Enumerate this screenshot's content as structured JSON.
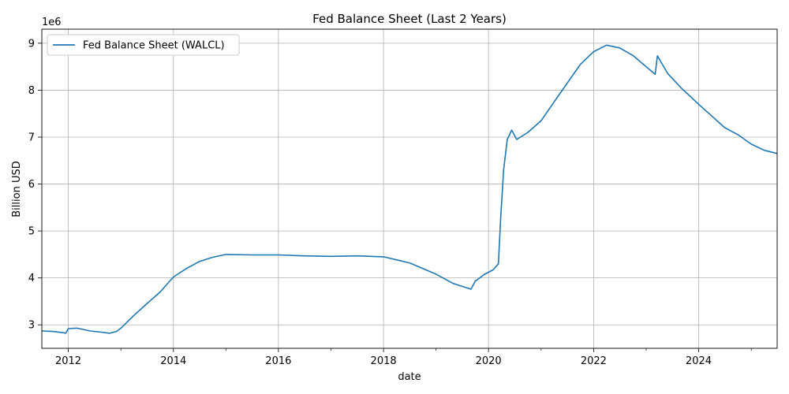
{
  "chart_data": {
    "type": "line",
    "title": "Fed Balance Sheet (Last 2 Years)",
    "xlabel": "date",
    "ylabel": "Billion USD",
    "y_offset_label": "1e6",
    "y_scale_note": "axis values shown in units of 1e6",
    "xlim": [
      "2011-07-01",
      "2025-06-30"
    ],
    "ylim": [
      2.5,
      9.3
    ],
    "x_ticks": [
      "2012",
      "2014",
      "2016",
      "2018",
      "2020",
      "2022",
      "2024"
    ],
    "y_ticks": [
      3,
      4,
      5,
      6,
      7,
      8,
      9
    ],
    "grid": true,
    "legend_position": "top-left",
    "colors": {
      "line": "#1f77b4",
      "grid": "#b0b0b0"
    },
    "series": [
      {
        "name": "Fed Balance Sheet (WALCL)",
        "points": [
          [
            "2011-07-01",
            2.87
          ],
          [
            "2011-09-15",
            2.86
          ],
          [
            "2011-12-01",
            2.83
          ],
          [
            "2011-12-15",
            2.82
          ],
          [
            "2012-01-01",
            2.92
          ],
          [
            "2012-03-01",
            2.93
          ],
          [
            "2012-06-01",
            2.87
          ],
          [
            "2012-09-01",
            2.84
          ],
          [
            "2012-10-15",
            2.82
          ],
          [
            "2012-12-01",
            2.86
          ],
          [
            "2013-01-01",
            2.93
          ],
          [
            "2013-04-01",
            3.2
          ],
          [
            "2013-07-01",
            3.45
          ],
          [
            "2013-10-01",
            3.7
          ],
          [
            "2014-01-01",
            4.02
          ],
          [
            "2014-04-01",
            4.2
          ],
          [
            "2014-07-01",
            4.35
          ],
          [
            "2014-10-01",
            4.44
          ],
          [
            "2015-01-01",
            4.5
          ],
          [
            "2015-07-01",
            4.49
          ],
          [
            "2016-01-01",
            4.49
          ],
          [
            "2016-07-01",
            4.47
          ],
          [
            "2017-01-01",
            4.46
          ],
          [
            "2017-07-01",
            4.47
          ],
          [
            "2018-01-01",
            4.45
          ],
          [
            "2018-07-01",
            4.32
          ],
          [
            "2019-01-01",
            4.08
          ],
          [
            "2019-05-01",
            3.88
          ],
          [
            "2019-09-01",
            3.76
          ],
          [
            "2019-10-01",
            3.93
          ],
          [
            "2019-12-01",
            4.07
          ],
          [
            "2020-02-01",
            4.17
          ],
          [
            "2020-03-10",
            4.3
          ],
          [
            "2020-03-25",
            5.25
          ],
          [
            "2020-04-15",
            6.3
          ],
          [
            "2020-05-10",
            6.95
          ],
          [
            "2020-06-10",
            7.15
          ],
          [
            "2020-07-15",
            6.95
          ],
          [
            "2020-10-01",
            7.1
          ],
          [
            "2021-01-01",
            7.35
          ],
          [
            "2021-04-01",
            7.75
          ],
          [
            "2021-07-01",
            8.15
          ],
          [
            "2021-10-01",
            8.55
          ],
          [
            "2022-01-01",
            8.82
          ],
          [
            "2022-04-01",
            8.96
          ],
          [
            "2022-07-01",
            8.9
          ],
          [
            "2022-10-01",
            8.74
          ],
          [
            "2023-01-01",
            8.5
          ],
          [
            "2023-03-05",
            8.34
          ],
          [
            "2023-03-20",
            8.73
          ],
          [
            "2023-06-01",
            8.35
          ],
          [
            "2023-09-01",
            8.05
          ],
          [
            "2024-01-01",
            7.7
          ],
          [
            "2024-04-01",
            7.45
          ],
          [
            "2024-07-01",
            7.2
          ],
          [
            "2024-10-01",
            7.05
          ],
          [
            "2025-01-01",
            6.85
          ],
          [
            "2025-04-01",
            6.72
          ],
          [
            "2025-06-30",
            6.65
          ]
        ]
      }
    ]
  }
}
